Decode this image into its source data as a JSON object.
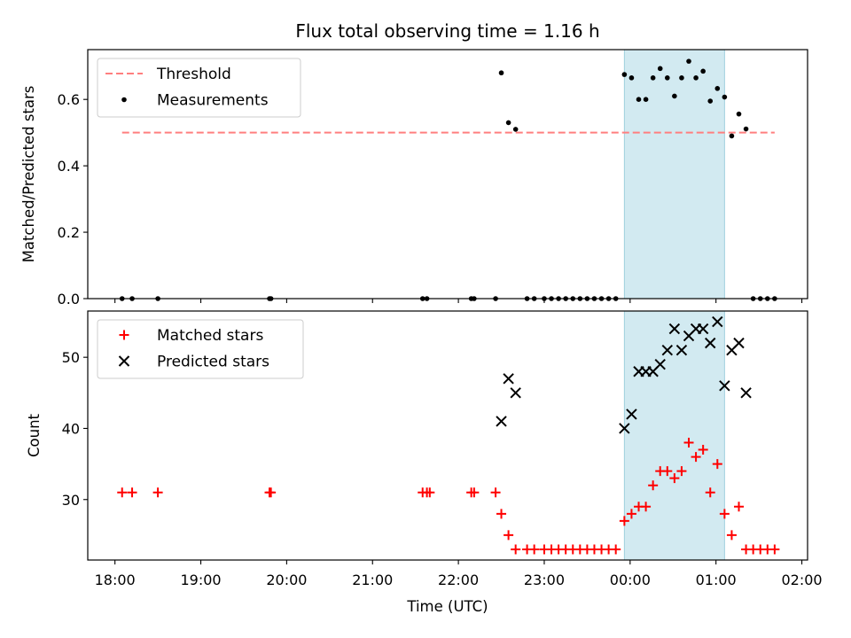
{
  "chart_data": {
    "title": "Flux total observing time = 1.16 h",
    "shaded_interval": {
      "start": "23:56",
      "end": "01:06",
      "color": "#add8e6"
    },
    "panels": [
      {
        "type": "scatter",
        "ylabel": "Matched/Predicted stars",
        "ylim": [
          0,
          0.75
        ],
        "yticks": [
          0.0,
          0.2,
          0.4,
          0.6
        ],
        "ytick_labels": [
          "0.0",
          "0.2",
          "0.4",
          "0.6"
        ],
        "legend_position": "top-left",
        "threshold": {
          "name": "Threshold",
          "value": 0.5,
          "x_start": "18:05",
          "x_end": "01:41",
          "color": "#ff7f7f"
        },
        "series": [
          {
            "name": "Measurements",
            "marker": "dot",
            "color": "#000000",
            "x": [
              "18:05",
              "18:12",
              "18:30",
              "19:48",
              "19:49",
              "21:35",
              "21:38",
              "22:09",
              "22:11",
              "22:26",
              "22:30",
              "22:35",
              "22:40",
              "22:48",
              "22:53",
              "23:00",
              "23:05",
              "23:10",
              "23:15",
              "23:20",
              "23:25",
              "23:30",
              "23:35",
              "23:40",
              "23:45",
              "23:50",
              "23:56",
              "00:01",
              "00:06",
              "00:11",
              "00:16",
              "00:21",
              "00:26",
              "00:31",
              "00:36",
              "00:41",
              "00:46",
              "00:51",
              "00:56",
              "01:01",
              "01:06",
              "01:11",
              "01:16",
              "01:21",
              "01:26",
              "01:31",
              "01:36",
              "01:41"
            ],
            "y": [
              0,
              0,
              0,
              0,
              0,
              0,
              0,
              0,
              0,
              0,
              0.68,
              0.53,
              0.51,
              0,
              0,
              0,
              0,
              0,
              0,
              0,
              0,
              0,
              0,
              0,
              0,
              0,
              0.675,
              0.665,
              0.6,
              0.6,
              0.665,
              0.693,
              0.665,
              0.61,
              0.665,
              0.715,
              0.665,
              0.685,
              0.595,
              0.633,
              0.607,
              0.49,
              0.556,
              0.511,
              0,
              0,
              0,
              0
            ]
          }
        ]
      },
      {
        "type": "scatter",
        "ylabel": "Count",
        "xlabel": "Time (UTC)",
        "ylim": [
          21.5,
          56.5
        ],
        "yticks": [
          30,
          40,
          50
        ],
        "ytick_labels": [
          "30",
          "40",
          "50"
        ],
        "xticks": [
          "18:00",
          "19:00",
          "20:00",
          "21:00",
          "22:00",
          "23:00",
          "00:00",
          "01:00",
          "02:00"
        ],
        "legend_position": "top-left",
        "series": [
          {
            "name": "Matched stars",
            "marker": "plus",
            "color": "#ff0000",
            "x": [
              "18:05",
              "18:12",
              "18:30",
              "19:48",
              "19:49",
              "21:35",
              "21:38",
              "21:40",
              "22:09",
              "22:11",
              "22:26",
              "22:30",
              "22:35",
              "22:40",
              "22:48",
              "22:53",
              "23:00",
              "23:05",
              "23:10",
              "23:15",
              "23:20",
              "23:25",
              "23:30",
              "23:35",
              "23:40",
              "23:45",
              "23:50",
              "23:56",
              "00:01",
              "00:06",
              "00:11",
              "00:16",
              "00:21",
              "00:26",
              "00:31",
              "00:36",
              "00:41",
              "00:46",
              "00:51",
              "00:56",
              "01:01",
              "01:06",
              "01:11",
              "01:16",
              "01:21",
              "01:26",
              "01:31",
              "01:36",
              "01:41"
            ],
            "y": [
              31,
              31,
              31,
              31,
              31,
              31,
              31,
              31,
              31,
              31,
              31,
              28,
              25,
              23,
              23,
              23,
              23,
              23,
              23,
              23,
              23,
              23,
              23,
              23,
              23,
              23,
              23,
              27,
              28,
              29,
              29,
              32,
              34,
              34,
              33,
              34,
              38,
              36,
              37,
              31,
              35,
              28,
              25,
              29,
              23,
              23,
              23,
              23,
              23
            ]
          },
          {
            "name": "Predicted stars",
            "marker": "x",
            "color": "#000000",
            "x": [
              "22:30",
              "22:35",
              "22:40",
              "23:56",
              "00:01",
              "00:06",
              "00:11",
              "00:16",
              "00:21",
              "00:26",
              "00:31",
              "00:36",
              "00:41",
              "00:46",
              "00:51",
              "00:56",
              "01:01",
              "01:06",
              "01:11",
              "01:16",
              "01:21"
            ],
            "y": [
              41,
              47,
              45,
              40,
              42,
              48,
              48,
              48,
              49,
              51,
              54,
              51,
              53,
              54,
              54,
              52,
              55,
              46,
              51,
              52,
              45
            ]
          }
        ]
      }
    ]
  }
}
